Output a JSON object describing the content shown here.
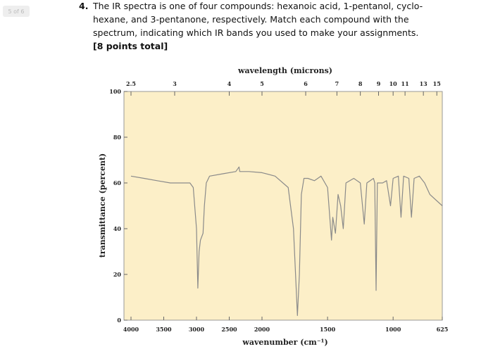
{
  "page_label": "5 of 6",
  "question": {
    "number": "4.",
    "lines": [
      "The IR spectra is one of four compounds: hexanoic acid, 1-pentanol, cyclo-",
      "hexane, and 3-pentanone, respectively. Match each compound with the",
      "spectrum, indicating which IR bands you used to make your assignments."
    ],
    "points": "[8 points total]"
  },
  "chart_data": {
    "type": "line",
    "xlabel": "wavenumber (cm⁻¹)",
    "ylabel": "transmittance (percent)",
    "x2label": "wavelength (microns)",
    "xlim": [
      4000,
      625
    ],
    "x_scale_change_at": 2000,
    "xticks": [
      4000,
      3500,
      3000,
      2500,
      2000,
      1500,
      1000,
      625
    ],
    "x2ticks": [
      2.5,
      3,
      4,
      5,
      6,
      7,
      8,
      9,
      10,
      11,
      13,
      15
    ],
    "ylim": [
      0,
      100
    ],
    "yticks": [
      0,
      20,
      40,
      60,
      80,
      100
    ],
    "background": "#fcefc8",
    "series": [
      {
        "color": "#8a8a8a",
        "x": [
          4000,
          3800,
          3600,
          3400,
          3100,
          3050,
          3000,
          2980,
          2960,
          2940,
          2900,
          2880,
          2850,
          2800,
          2600,
          2400,
          2350,
          2340,
          2200,
          2000,
          1900,
          1800,
          1760,
          1730,
          1715,
          1700,
          1680,
          1650,
          1600,
          1550,
          1500,
          1470,
          1460,
          1440,
          1420,
          1400,
          1380,
          1360,
          1300,
          1250,
          1220,
          1200,
          1150,
          1140,
          1130,
          1120,
          1080,
          1050,
          1020,
          1000,
          960,
          940,
          920,
          880,
          860,
          840,
          800,
          760,
          720,
          625
        ],
        "values": [
          63,
          62,
          61,
          60,
          60,
          58,
          40,
          14,
          30,
          35,
          38,
          50,
          60,
          63,
          64,
          65,
          67,
          65,
          65,
          64.5,
          63,
          58,
          40,
          2,
          20,
          55,
          62,
          62,
          61,
          63,
          58,
          35,
          45,
          38,
          55,
          50,
          40,
          60,
          62,
          60,
          42,
          60,
          62,
          60,
          13,
          60,
          60,
          61,
          50,
          62,
          63,
          45,
          63,
          62,
          45,
          62,
          63,
          60,
          55,
          50
        ]
      }
    ]
  }
}
